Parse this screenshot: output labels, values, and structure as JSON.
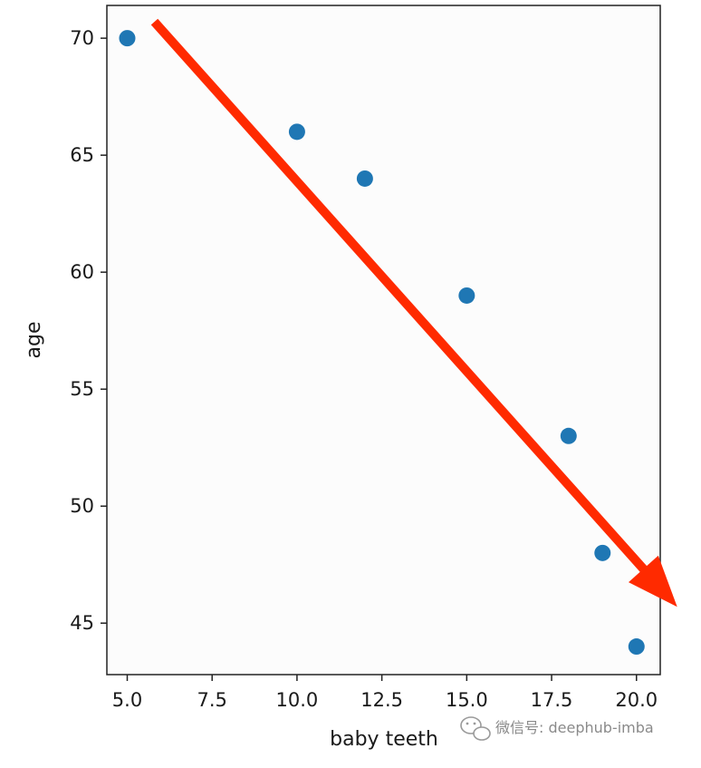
{
  "chart_data": {
    "type": "scatter",
    "title": "",
    "xlabel": "baby teeth",
    "ylabel": "age",
    "xlim": [
      4.4,
      20.7
    ],
    "ylim": [
      42.8,
      71.4
    ],
    "x_ticks": [
      5.0,
      7.5,
      10.0,
      12.5,
      15.0,
      17.5,
      20.0
    ],
    "x_tick_labels": [
      "5.0",
      "7.5",
      "10.0",
      "12.5",
      "15.0",
      "17.5",
      "20.0"
    ],
    "y_ticks": [
      45,
      50,
      55,
      60,
      65,
      70
    ],
    "y_tick_labels": [
      "45",
      "50",
      "55",
      "60",
      "65",
      "70"
    ],
    "grid": false,
    "series": [
      {
        "x": [
          5,
          10,
          12,
          15,
          18,
          19,
          20
        ],
        "y": [
          70,
          66,
          64,
          59,
          53,
          48,
          44
        ],
        "color": "#1f77b4"
      }
    ],
    "annotations": [
      {
        "type": "arrow",
        "color": "#ff2a00",
        "from": [
          5.8,
          70.7
        ],
        "to": [
          21.2,
          45.7
        ]
      }
    ]
  },
  "watermark": {
    "text": "微信号: deephub-imba",
    "icon": "wechat-icon"
  }
}
